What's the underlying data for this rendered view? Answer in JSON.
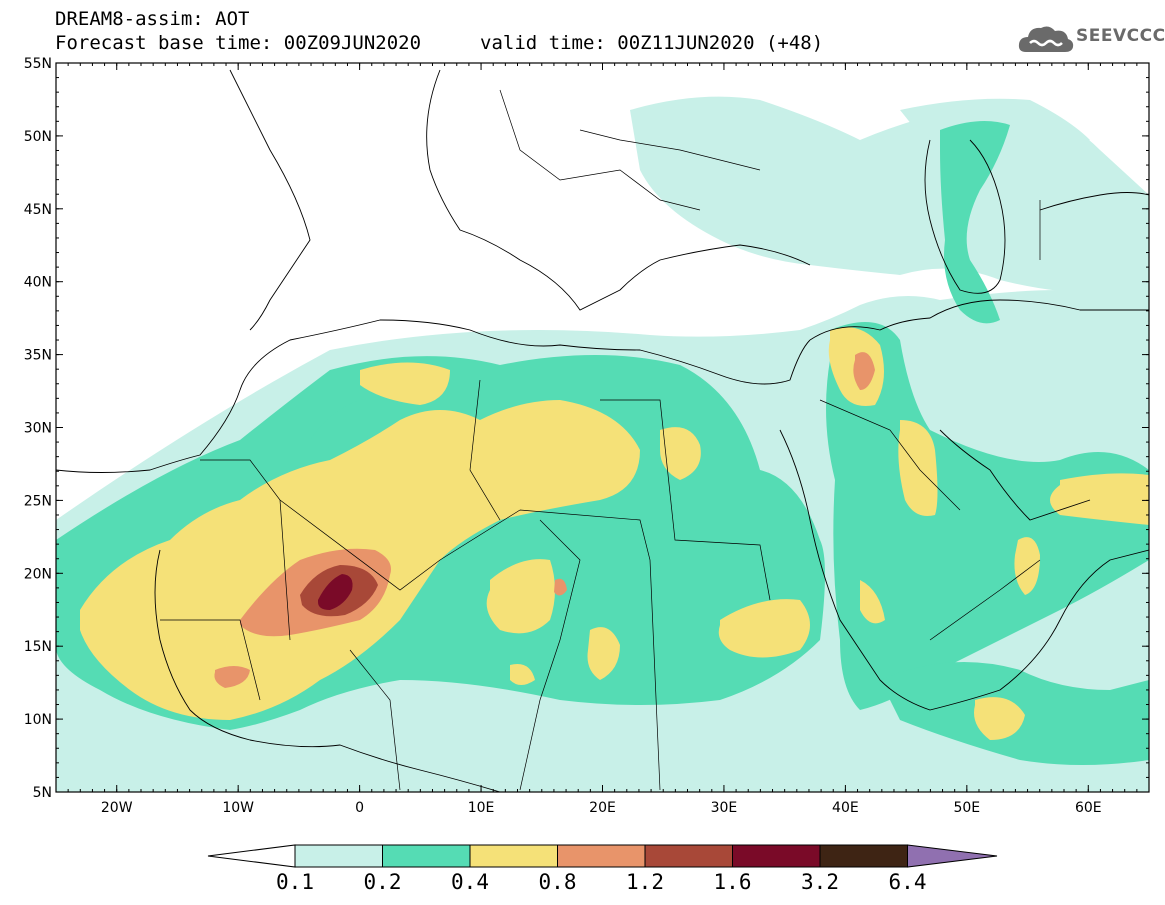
{
  "header": {
    "line1": "DREAM8-assim: AOT",
    "base_time": "Forecast base time: 00Z09JUN2020",
    "valid_time": "valid time: 00Z11JUN2020 (+48)"
  },
  "logo": {
    "text": "SEEVCCC",
    "icon": "cloud-icon"
  },
  "map": {
    "lon_range": [
      -25,
      65
    ],
    "lat_range": [
      5,
      55
    ],
    "lat_labels": [
      "5N",
      "10N",
      "15N",
      "20N",
      "25N",
      "30N",
      "35N",
      "40N",
      "45N",
      "50N",
      "55N"
    ],
    "lon_labels": [
      "20W",
      "10W",
      "0",
      "10E",
      "20E",
      "30E",
      "40E",
      "50E",
      "60E"
    ],
    "field": "AOT"
  },
  "colorbar": {
    "levels": [
      "0.1",
      "0.2",
      "0.4",
      "0.8",
      "1.2",
      "1.6",
      "3.2",
      "6.4"
    ],
    "colors": [
      "#ffffff",
      "#c8f0e8",
      "#55dcb4",
      "#f5e178",
      "#e8946a",
      "#a84838",
      "#7a0a28",
      "#3e2414",
      "#9070b0"
    ]
  },
  "colors": {
    "lt": "#c8f0e8",
    "md": "#55dcb4",
    "ye": "#f5e178",
    "or": "#e8946a",
    "rd": "#a84838",
    "dk": "#7a0a28"
  }
}
